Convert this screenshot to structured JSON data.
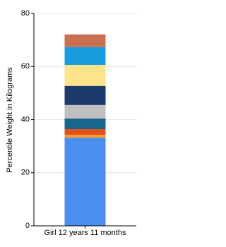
{
  "chart_data": {
    "type": "stacked-bar",
    "y_label": "Percentile Weight in Kilograms",
    "categories": [
      "Girl 12 years 11 months"
    ],
    "series": [
      {
        "color": "#4a8ff0",
        "values": [
          33.2
        ]
      },
      {
        "color": "#f0a030",
        "values": [
          1.1
        ]
      },
      {
        "color": "#e8501a",
        "values": [
          2.1
        ]
      },
      {
        "color": "#17678f",
        "values": [
          4.0
        ]
      },
      {
        "color": "#c0c0c0",
        "values": [
          5.1
        ]
      },
      {
        "color": "#1c3a6b",
        "values": [
          7.2
        ]
      },
      {
        "color": "#fde48a",
        "values": [
          7.9
        ]
      },
      {
        "color": "#189de0",
        "values": [
          6.7
        ]
      },
      {
        "color": "#c87050",
        "values": [
          4.8
        ]
      }
    ],
    "ylim": [
      0,
      80
    ],
    "yticks": [
      0,
      20,
      40,
      60,
      80
    ],
    "grid": true
  }
}
